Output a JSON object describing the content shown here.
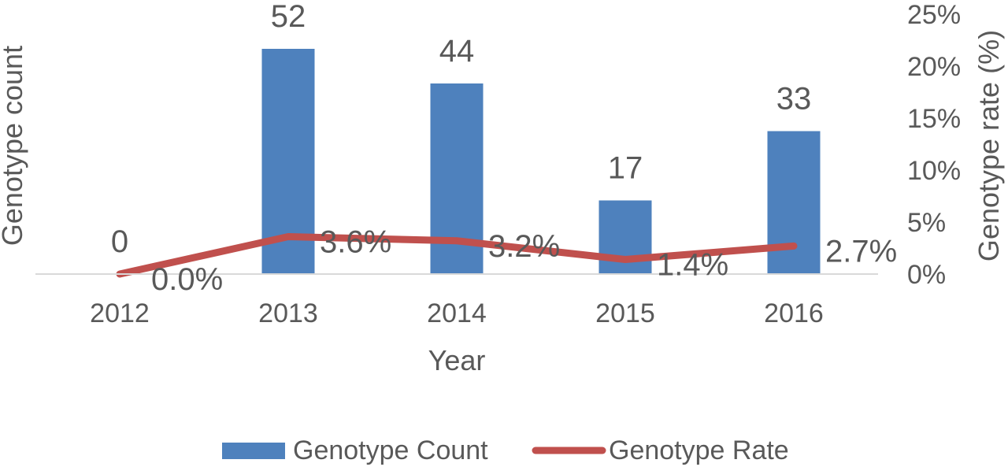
{
  "chart_data": {
    "type": "bar",
    "categories": [
      "2012",
      "2013",
      "2014",
      "2015",
      "2016"
    ],
    "series": [
      {
        "name": "Genotype Count",
        "type": "bar",
        "axis": "left",
        "values": [
          0,
          52,
          44,
          17,
          33
        ],
        "labels": [
          "0",
          "52",
          "44",
          "17",
          "33"
        ],
        "color": "#4e81bd"
      },
      {
        "name": "Genotype Rate",
        "type": "line",
        "axis": "right",
        "values": [
          0.0,
          3.6,
          3.2,
          1.4,
          2.7
        ],
        "labels": [
          "0.0%",
          "3.6%",
          "3.2%",
          "1.4%",
          "2.7%"
        ],
        "color": "#c0504d"
      }
    ],
    "xlabel": "Year",
    "ylabel": "Genotype count",
    "y2label": "Genotype rate (%)",
    "ylim": [
      0,
      60
    ],
    "y2lim": [
      0,
      25
    ],
    "y2ticks": [
      "0%",
      "5%",
      "10%",
      "15%",
      "20%",
      "25%"
    ],
    "grid": false,
    "legend": "bottom"
  }
}
